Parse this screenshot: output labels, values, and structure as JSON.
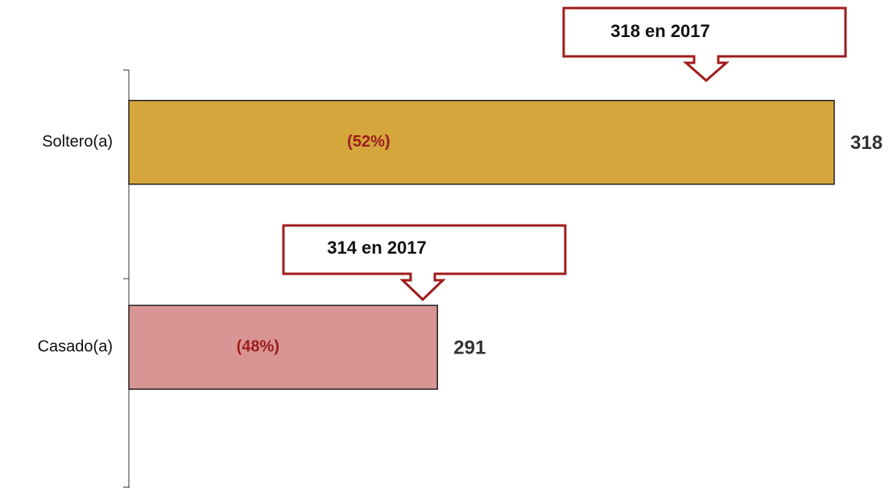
{
  "chart_data": {
    "type": "barh",
    "categories": [
      "Soltero(a)",
      "Casado(a)"
    ],
    "values": [
      318,
      291
    ],
    "colors": [
      "#d4a63c",
      "#d99594"
    ],
    "percent": {
      "values": [
        52,
        48
      ],
      "value_labels": [
        "(52%)",
        "(48%)"
      ]
    },
    "xlim": [
      270,
      318
    ],
    "annotations": [
      "318 en 2017",
      "314 en 2017"
    ]
  }
}
